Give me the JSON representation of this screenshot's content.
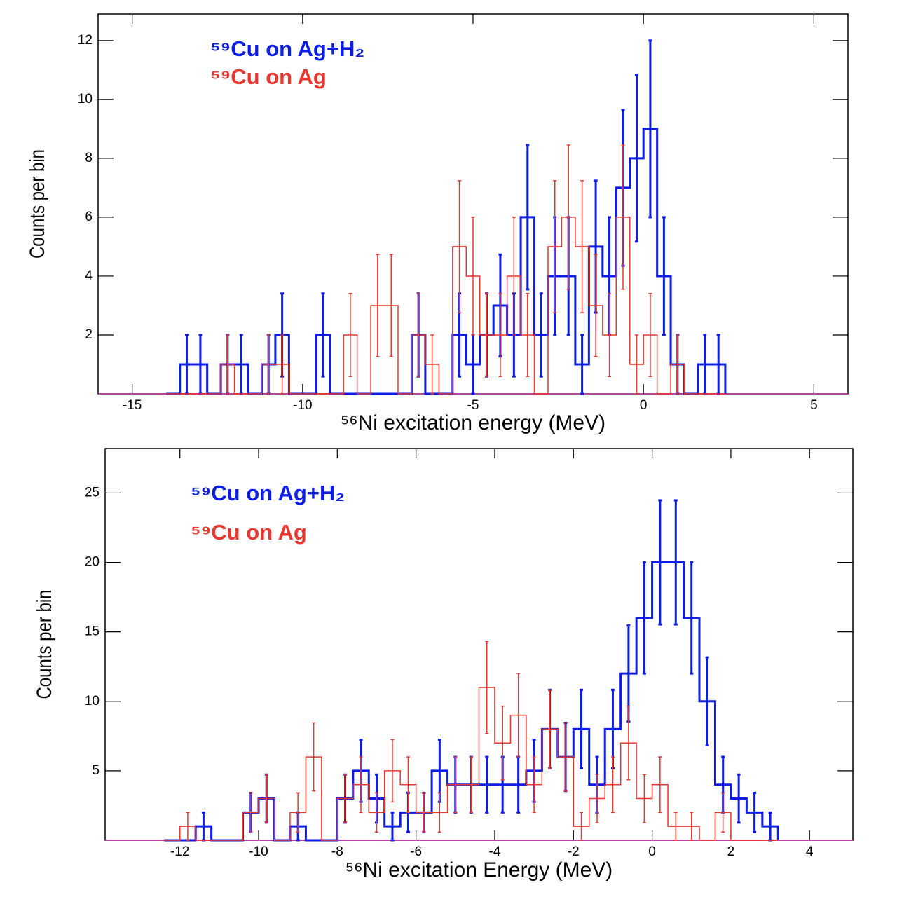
{
  "chart_data": [
    {
      "type": "histogram",
      "xlabel": "⁵⁶Ni excitation energy (MeV)",
      "ylabel": "Counts per bin",
      "xlim": [
        -16,
        6
      ],
      "ylim": [
        0,
        12.9
      ],
      "xticks": [
        -15,
        -10,
        -5,
        0,
        5
      ],
      "yticks": [
        2,
        4,
        6,
        8,
        10,
        12
      ],
      "bins": [
        -14,
        -13.6,
        -13.2,
        -12.8,
        -12.4,
        -12,
        -11.6,
        -11.2,
        -10.8,
        -10.4,
        -10,
        -9.6,
        -9.2,
        -8.8,
        -8.4,
        -8,
        -7.6,
        -7.2,
        -6.8,
        -6.4,
        -6,
        -5.6,
        -5.2,
        -4.8,
        -4.4,
        -4,
        -3.6,
        -3.2,
        -2.8,
        -2.4,
        -2,
        -1.6,
        -1.2,
        -0.8,
        -0.4,
        0,
        0.4,
        0.8,
        1.2,
        1.6,
        2,
        2.4
      ],
      "series": [
        {
          "name": "⁵⁹Cu on Ag+H₂",
          "color": "#0b1de6",
          "values": [
            0,
            1,
            1,
            0,
            1,
            1,
            0,
            1,
            2,
            0,
            0,
            2,
            0,
            0,
            0,
            0,
            0,
            0,
            2,
            0,
            0,
            2,
            1,
            2,
            3,
            2,
            6,
            2,
            4,
            4,
            1,
            5,
            4,
            7,
            8,
            9,
            4,
            1,
            0,
            1,
            1
          ],
          "errors": [
            0,
            1,
            1,
            0,
            1,
            1,
            0,
            1,
            1.41,
            0,
            0,
            1.41,
            0,
            0,
            0,
            0,
            0,
            0,
            1.41,
            0,
            0,
            1.41,
            1,
            1.41,
            1.73,
            1.41,
            2.45,
            1.41,
            2,
            2,
            1,
            2.24,
            2,
            2.65,
            2.83,
            3,
            2,
            1,
            0,
            1,
            1
          ]
        },
        {
          "name": "⁵⁹Cu on Ag",
          "color": "#e8372f",
          "values": [
            0,
            0,
            0,
            0,
            1,
            0,
            0,
            1,
            1,
            0,
            0,
            0,
            0,
            2,
            0,
            3,
            3,
            0,
            2,
            1,
            0,
            5,
            4,
            2,
            2,
            4,
            2,
            0,
            5,
            6,
            5,
            3,
            2,
            6,
            1,
            2,
            0,
            1,
            0,
            0,
            0
          ],
          "errors": [
            0,
            0,
            0,
            0,
            1,
            0,
            0,
            1,
            1,
            0,
            0,
            0,
            0,
            1.41,
            0,
            1.73,
            1.73,
            0,
            1.41,
            1,
            0,
            2.24,
            2,
            1.41,
            1.41,
            2,
            1.41,
            0,
            2.24,
            2.45,
            2.24,
            1.73,
            1.41,
            2.45,
            1,
            1.41,
            0,
            1,
            0,
            0,
            0
          ]
        }
      ]
    },
    {
      "type": "histogram",
      "xlabel": "⁵⁶Ni excitation Energy (MeV)",
      "ylabel": "Counts per bin",
      "xlim": [
        -13.9,
        5.1
      ],
      "ylim": [
        0,
        28.2
      ],
      "xticks": [
        -12,
        -10,
        -8,
        -6,
        -4,
        -2,
        0,
        2,
        4
      ],
      "yticks": [
        5,
        10,
        15,
        20,
        25
      ],
      "bins": [
        -12.4,
        -12,
        -11.6,
        -11.2,
        -10.8,
        -10.4,
        -10,
        -9.6,
        -9.2,
        -8.8,
        -8.4,
        -8,
        -7.6,
        -7.2,
        -6.8,
        -6.4,
        -6,
        -5.6,
        -5.2,
        -4.8,
        -4.4,
        -4,
        -3.6,
        -3.2,
        -2.8,
        -2.4,
        -2,
        -1.6,
        -1.2,
        -0.8,
        -0.4,
        0,
        0.4,
        0.8,
        1.2,
        1.6,
        2,
        2.4,
        2.8,
        3.2
      ],
      "series": [
        {
          "name": "⁵⁹Cu on Ag+H₂",
          "color": "#0b1de6",
          "values": [
            0,
            0,
            1,
            0,
            0,
            2,
            3,
            0,
            1,
            0,
            0,
            3,
            5,
            3,
            1,
            2,
            2,
            5,
            4,
            4,
            4,
            4,
            4,
            5,
            8,
            6,
            8,
            4,
            8,
            12,
            16,
            20,
            20,
            16,
            10,
            4,
            3,
            2,
            1
          ],
          "errors": [
            0,
            0,
            1,
            0,
            0,
            1.41,
            1.73,
            0,
            1,
            0,
            0,
            1.73,
            2.24,
            1.73,
            1,
            1.41,
            1.41,
            2.24,
            2,
            2,
            2,
            2,
            2,
            2.24,
            2.83,
            2.45,
            2.83,
            2,
            2.83,
            3.46,
            4,
            4.47,
            4.47,
            4,
            3.16,
            2,
            1.73,
            1.41,
            1
          ]
        },
        {
          "name": "⁵⁹Cu on Ag",
          "color": "#e8372f",
          "values": [
            0,
            1,
            0,
            0,
            0,
            2,
            3,
            0,
            2,
            6,
            0,
            3,
            4,
            2,
            5,
            4,
            2,
            2,
            4,
            4,
            11,
            7,
            9,
            4,
            8,
            6,
            1,
            3,
            4,
            7,
            3,
            4,
            1,
            1,
            0,
            2,
            0,
            0,
            0
          ],
          "errors": [
            0,
            1,
            0,
            0,
            0,
            1.41,
            1.73,
            0,
            1.41,
            2.45,
            0,
            1.73,
            2,
            1.41,
            2.24,
            2,
            1.41,
            1.41,
            2,
            2,
            3.32,
            2.65,
            3,
            2,
            2.83,
            2.45,
            1,
            1.73,
            2,
            2.65,
            1.73,
            2,
            1,
            1,
            0,
            1.41,
            0,
            0,
            0
          ]
        }
      ]
    }
  ]
}
